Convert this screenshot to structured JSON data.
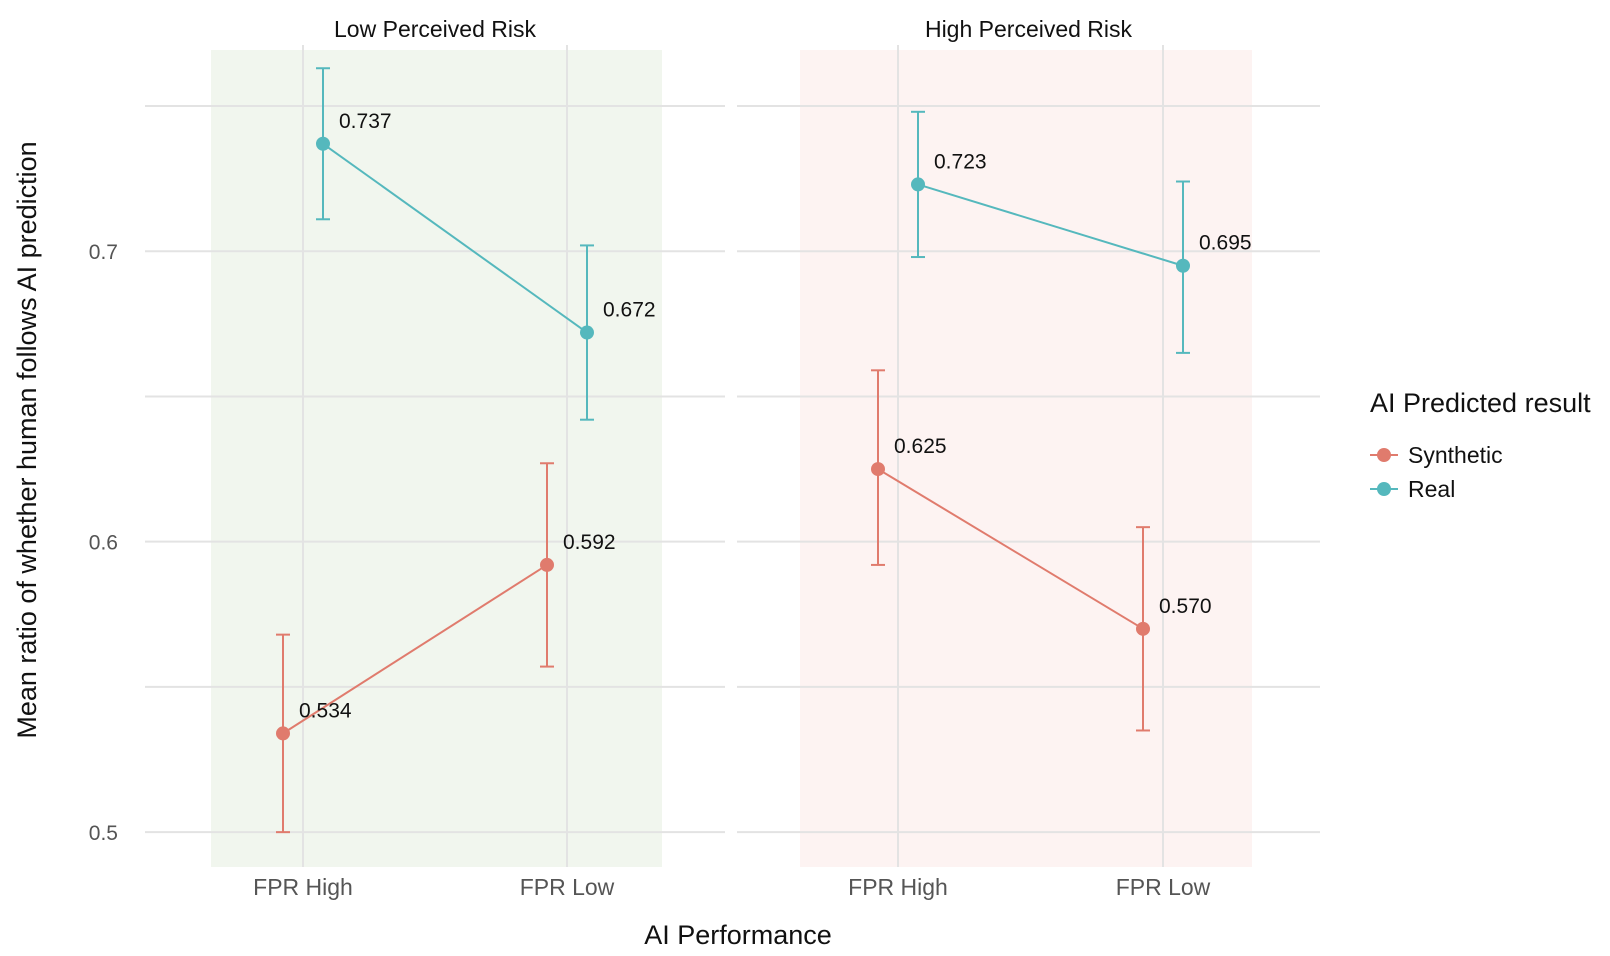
{
  "chart_data": {
    "type": "line",
    "xlabel": "AI Performance",
    "ylabel": "Mean ratio of whether human follows AI prediction",
    "ylim": [
      0.488,
      0.771
    ],
    "yticks": [
      0.5,
      0.6,
      0.7
    ],
    "ytick_labels": [
      "0.5",
      "0.6",
      "0.7"
    ],
    "categories": [
      "FPR High",
      "FPR Low"
    ],
    "legend": {
      "title": "AI Predicted result",
      "position": "right",
      "entries": [
        "Synthetic",
        "Real"
      ]
    },
    "colors": {
      "Synthetic": "#e07b6d",
      "Real": "#55b8bd"
    },
    "grid": true,
    "panels": [
      {
        "title": "Low Perceived Risk",
        "background": "#f1f6ee",
        "series": [
          {
            "name": "Synthetic",
            "values": [
              0.534,
              0.592
            ],
            "labels": [
              "0.534",
              "0.592"
            ],
            "ci_low": [
              0.5,
              0.557
            ],
            "ci_high": [
              0.568,
              0.627
            ]
          },
          {
            "name": "Real",
            "values": [
              0.737,
              0.672
            ],
            "labels": [
              "0.737",
              "0.672"
            ],
            "ci_low": [
              0.711,
              0.642
            ],
            "ci_high": [
              0.763,
              0.702
            ]
          }
        ]
      },
      {
        "title": "High Perceived Risk",
        "background": "#fdf3f2",
        "series": [
          {
            "name": "Synthetic",
            "values": [
              0.625,
              0.57
            ],
            "labels": [
              "0.625",
              "0.570"
            ],
            "ci_low": [
              0.592,
              0.535
            ],
            "ci_high": [
              0.659,
              0.605
            ]
          },
          {
            "name": "Real",
            "values": [
              0.723,
              0.695
            ],
            "labels": [
              "0.723",
              "0.695"
            ],
            "ci_low": [
              0.698,
              0.665
            ],
            "ci_high": [
              0.748,
              0.724
            ]
          }
        ]
      }
    ]
  }
}
